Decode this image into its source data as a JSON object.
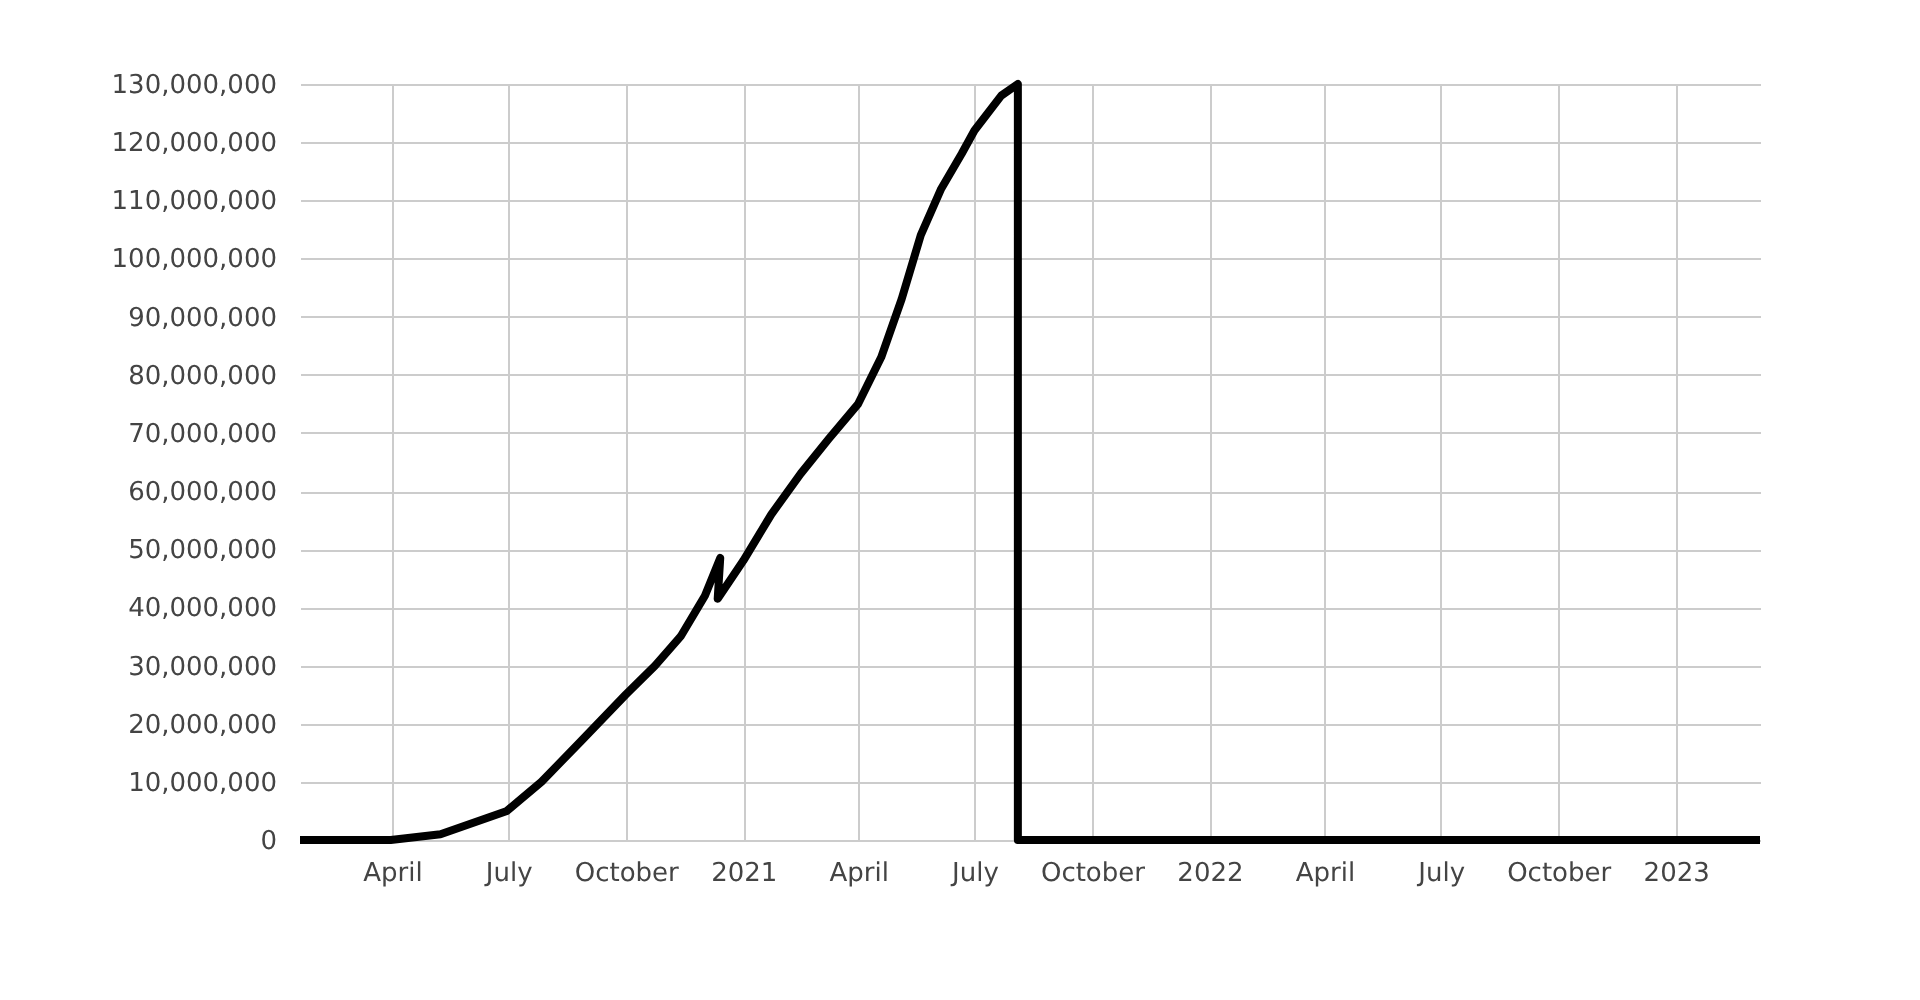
{
  "chart_data": {
    "type": "line",
    "x": [
      "2020-01-20",
      "2020-03-31",
      "2020-05-09",
      "2020-06-30",
      "2020-07-27",
      "2020-08-27",
      "2020-10-01",
      "2020-10-24",
      "2020-11-13",
      "2020-12-02",
      "2020-12-14",
      "2020-12-12",
      "2021-01-01",
      "2021-01-23",
      "2021-02-15",
      "2021-03-09",
      "2021-04-01",
      "2021-04-19",
      "2021-05-05",
      "2021-05-20",
      "2021-06-05",
      "2021-06-21",
      "2021-07-01",
      "2021-07-22",
      "2021-08-04",
      "2021-08-04",
      "2023-03-08"
    ],
    "series": [
      {
        "color": "#000000",
        "values": [
          0,
          0,
          1000000,
          5000000,
          10000000,
          17000000,
          25000000,
          30000000,
          35000000,
          42000000,
          48500000,
          41500000,
          48000000,
          56000000,
          63000000,
          69000000,
          75000000,
          83000000,
          93000000,
          104000000,
          112000000,
          118000000,
          122000000,
          128000000,
          130000000,
          0,
          0
        ]
      }
    ],
    "xlim": [
      "2020-01-20",
      "2023-03-08"
    ],
    "xticks": [
      {
        "value": "2020-04-01",
        "label": "April"
      },
      {
        "value": "2020-07-01",
        "label": "July"
      },
      {
        "value": "2020-10-01",
        "label": "October"
      },
      {
        "value": "2021-01-01",
        "label": "2021"
      },
      {
        "value": "2021-04-01",
        "label": "April"
      },
      {
        "value": "2021-07-01",
        "label": "July"
      },
      {
        "value": "2021-10-01",
        "label": "October"
      },
      {
        "value": "2022-01-01",
        "label": "2022"
      },
      {
        "value": "2022-04-01",
        "label": "April"
      },
      {
        "value": "2022-07-01",
        "label": "July"
      },
      {
        "value": "2022-10-01",
        "label": "October"
      },
      {
        "value": "2023-01-01",
        "label": "2023"
      }
    ],
    "ylim": [
      0,
      130000000
    ],
    "yticks": [
      0,
      {
        "value": 10000000,
        "label": "10,000,000"
      },
      {
        "value": 20000000,
        "label": "20,000,000"
      },
      {
        "value": 30000000,
        "label": "30,000,000"
      },
      {
        "value": 40000000,
        "label": "40,000,000"
      },
      {
        "value": 50000000,
        "label": "50,000,000"
      },
      {
        "value": 60000000,
        "label": "60,000,000"
      },
      {
        "value": 70000000,
        "label": "70,000,000"
      },
      {
        "value": 80000000,
        "label": "80,000,000"
      },
      {
        "value": 90000000,
        "label": "90,000,000"
      },
      {
        "value": 100000000,
        "label": "100,000,000"
      },
      {
        "value": 110000000,
        "label": "110,000,000"
      },
      {
        "value": 120000000,
        "label": "120,000,000"
      },
      {
        "value": 130000000,
        "label": "130,000,000"
      }
    ],
    "grid": true,
    "marker": "none",
    "line_style": "solid"
  }
}
